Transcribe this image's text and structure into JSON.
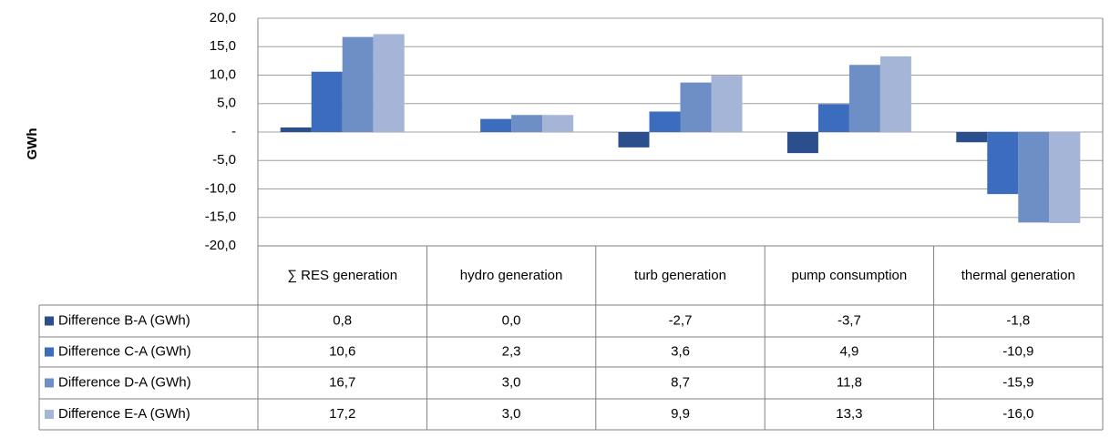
{
  "chart_data": {
    "type": "bar",
    "y_label": "GWh",
    "categories": [
      "∑ RES generation",
      "hydro generation",
      "turb generation",
      "pump consumption",
      "thermal generation"
    ],
    "series": [
      {
        "name": "Difference B-A (GWh)",
        "color": "#2b4f8c",
        "values": [
          0.8,
          0.0,
          -2.7,
          -3.7,
          -1.8
        ],
        "value_labels": [
          "0,8",
          "0,0",
          "-2,7",
          "-3,7",
          "-1,8"
        ]
      },
      {
        "name": "Difference C-A (GWh)",
        "color": "#3b6cbe",
        "values": [
          10.6,
          2.3,
          3.6,
          4.9,
          -10.9
        ],
        "value_labels": [
          "10,6",
          "2,3",
          "3,6",
          "4,9",
          "-10,9"
        ]
      },
      {
        "name": "Difference D-A (GWh)",
        "color": "#6e8fc6",
        "values": [
          16.7,
          3.0,
          8.7,
          11.8,
          -15.9
        ],
        "value_labels": [
          "16,7",
          "3,0",
          "8,7",
          "11,8",
          "-15,9"
        ]
      },
      {
        "name": "Difference E-A (GWh)",
        "color": "#a5b5d8",
        "values": [
          17.2,
          3.0,
          9.9,
          13.3,
          -16.0
        ],
        "value_labels": [
          "17,2",
          "3,0",
          "9,9",
          "13,3",
          "-16,0"
        ]
      }
    ],
    "ylim": [
      -20,
      20
    ],
    "yticks": [
      {
        "value": 20,
        "label": "20,0"
      },
      {
        "value": 15,
        "label": "15,0"
      },
      {
        "value": 10,
        "label": "10,0"
      },
      {
        "value": 5,
        "label": "5,0"
      },
      {
        "value": 0,
        "label": "-"
      },
      {
        "value": -5,
        "label": "-5,0"
      },
      {
        "value": -10,
        "label": "-10,0"
      },
      {
        "value": -15,
        "label": "-15,0"
      },
      {
        "value": -20,
        "label": "-20,0"
      }
    ],
    "grid": true
  }
}
